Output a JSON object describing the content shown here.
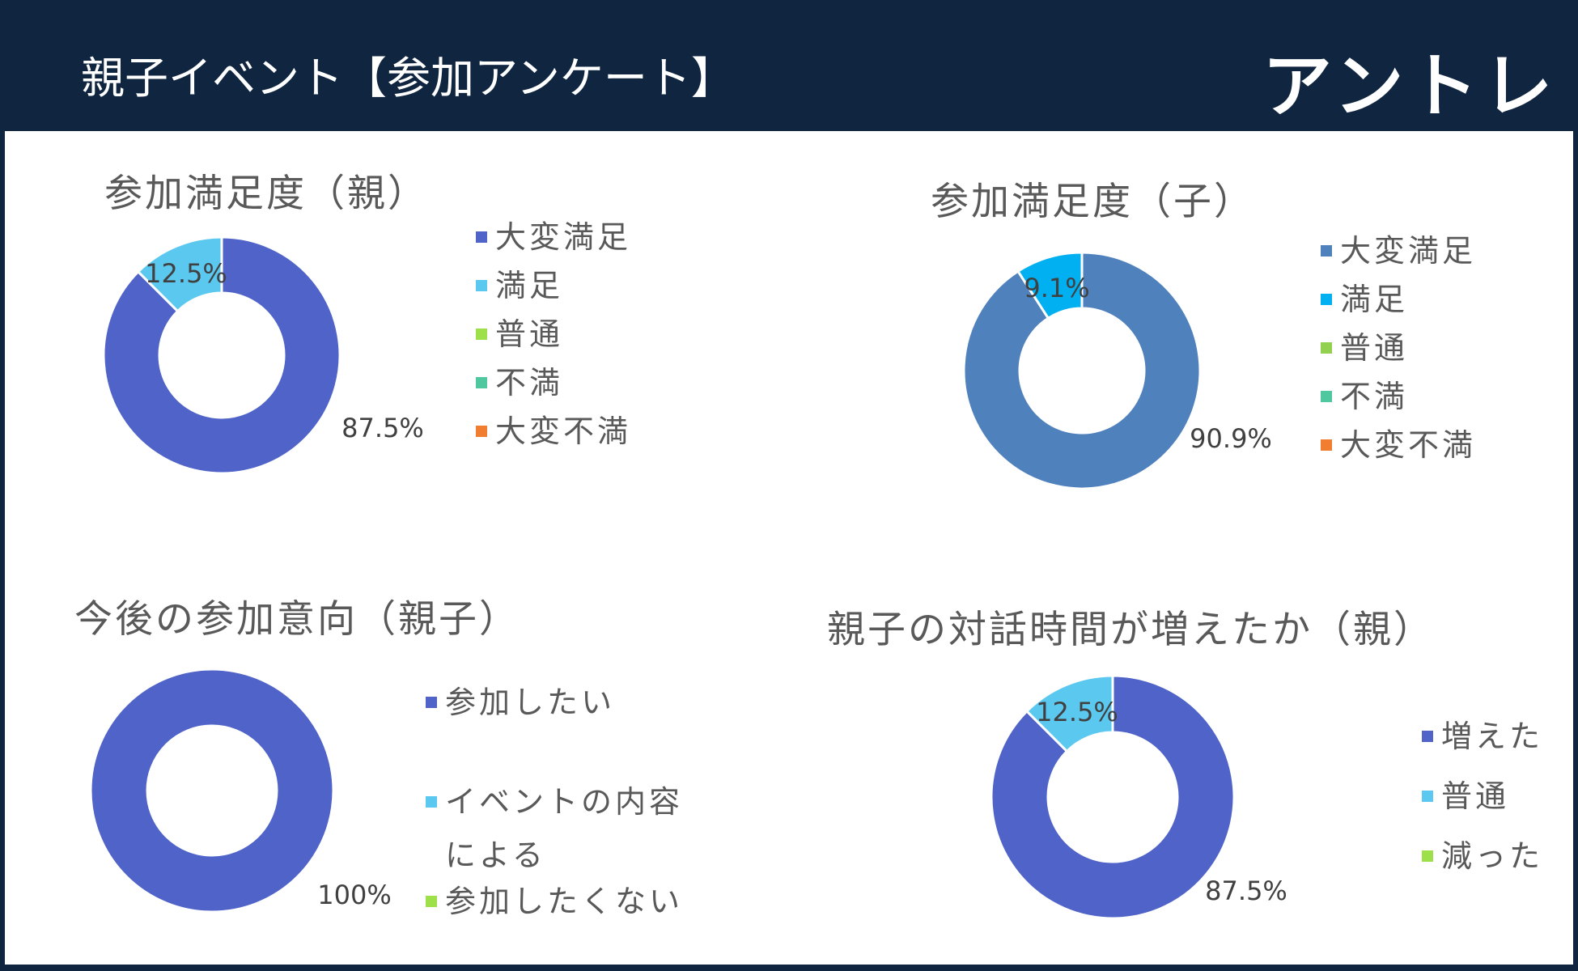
{
  "header": {
    "title": "親子イベント【参加アンケート】",
    "logo": "アントレ"
  },
  "chart_data": [
    {
      "type": "donut",
      "title": "参加満足度（親）",
      "categories": [
        "大変満足",
        "満足",
        "普通",
        "不満",
        "大変不満"
      ],
      "values": [
        87.5,
        12.5,
        0,
        0,
        0
      ],
      "value_labels": [
        "87.5%",
        "12.5%",
        null,
        null,
        null
      ],
      "colors": [
        "#4f63c8",
        "#5bc8f0",
        "#9ee04a",
        "#4fc8a0",
        "#f07d30"
      ]
    },
    {
      "type": "donut",
      "title": "参加満足度（子）",
      "categories": [
        "大変満足",
        "満足",
        "普通",
        "不満",
        "大変不満"
      ],
      "values": [
        90.9,
        9.1,
        0,
        0,
        0
      ],
      "value_labels": [
        "90.9%",
        "9.1%",
        null,
        null,
        null
      ],
      "colors": [
        "#4f81bd",
        "#00b0f0",
        "#92d050",
        "#4fc8a0",
        "#f07d30"
      ]
    },
    {
      "type": "donut",
      "title": "今後の参加意向（親子）",
      "categories": [
        "参加したい",
        "イベントの内容による",
        "参加したくない"
      ],
      "values": [
        100,
        0,
        0
      ],
      "value_labels": [
        "100%",
        null,
        null
      ],
      "colors": [
        "#4f63c8",
        "#5bc8f0",
        "#9ee04a"
      ]
    },
    {
      "type": "donut",
      "title": "親子の対話時間が増えたか（親）",
      "categories": [
        "増えた",
        "普通",
        "減った"
      ],
      "values": [
        87.5,
        12.5,
        0
      ],
      "value_labels": [
        "87.5%",
        "12.5%",
        null
      ],
      "colors": [
        "#4f63c8",
        "#5bc8f0",
        "#9ee04a"
      ]
    }
  ]
}
